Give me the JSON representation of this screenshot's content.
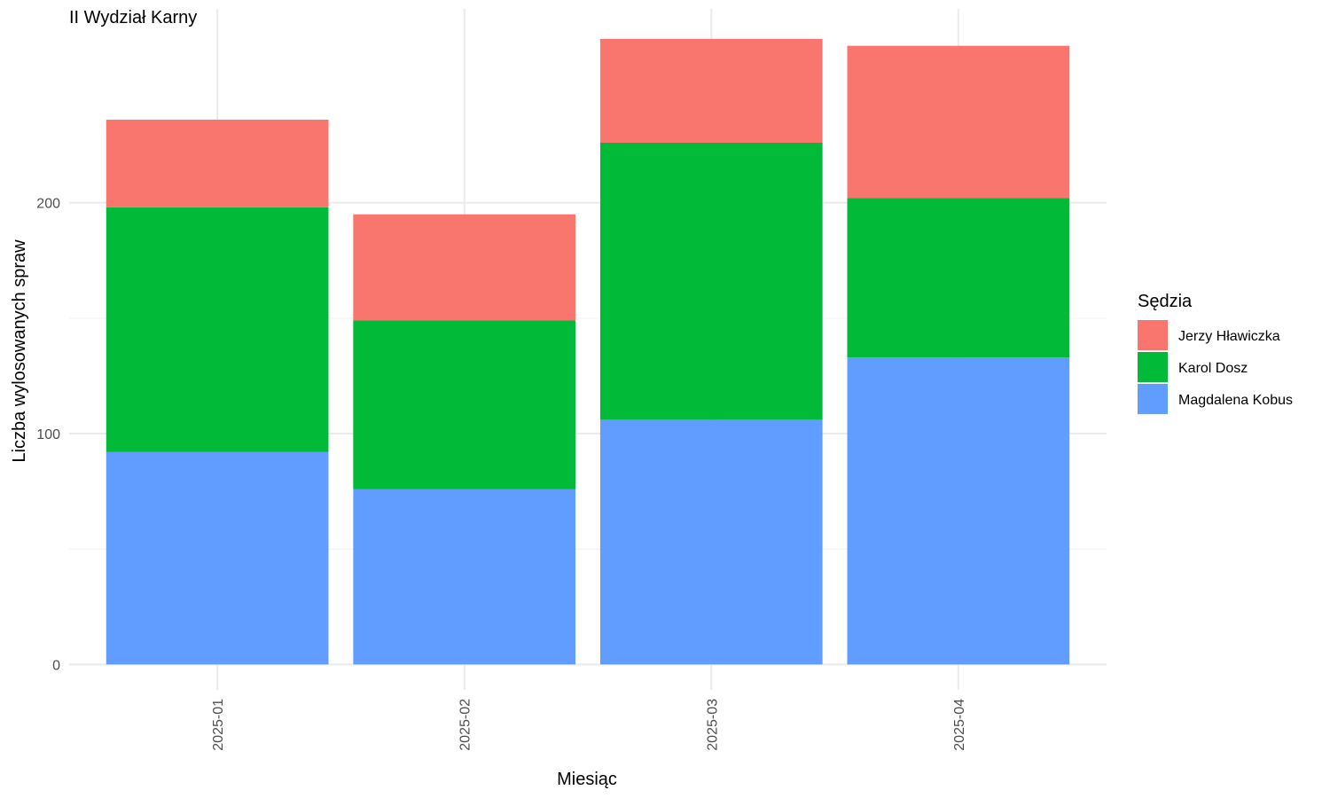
{
  "chart_data": {
    "type": "bar",
    "stacked": true,
    "title": "II Wydział Karny",
    "xlabel": "Miesiąc",
    "ylabel": "Liczba wylosowanych spraw",
    "categories": [
      "2025-01",
      "2025-02",
      "2025-03",
      "2025-04"
    ],
    "yticks": [
      0,
      100,
      200
    ],
    "ylim": [
      -11,
      284
    ],
    "grid": true,
    "legend": {
      "title": "Sędzia",
      "position": "right"
    },
    "series": [
      {
        "name": "Magdalena Kobus",
        "color": "#619CFF",
        "values": [
          92,
          76,
          106,
          133
        ]
      },
      {
        "name": "Karol Dosz",
        "color": "#00BA38",
        "values": [
          106,
          73,
          120,
          69
        ]
      },
      {
        "name": "Jerzy Hławiczka",
        "color": "#F8766D",
        "values": [
          38,
          46,
          45,
          66
        ]
      }
    ],
    "legend_order": [
      "Jerzy Hławiczka",
      "Karol Dosz",
      "Magdalena Kobus"
    ]
  }
}
